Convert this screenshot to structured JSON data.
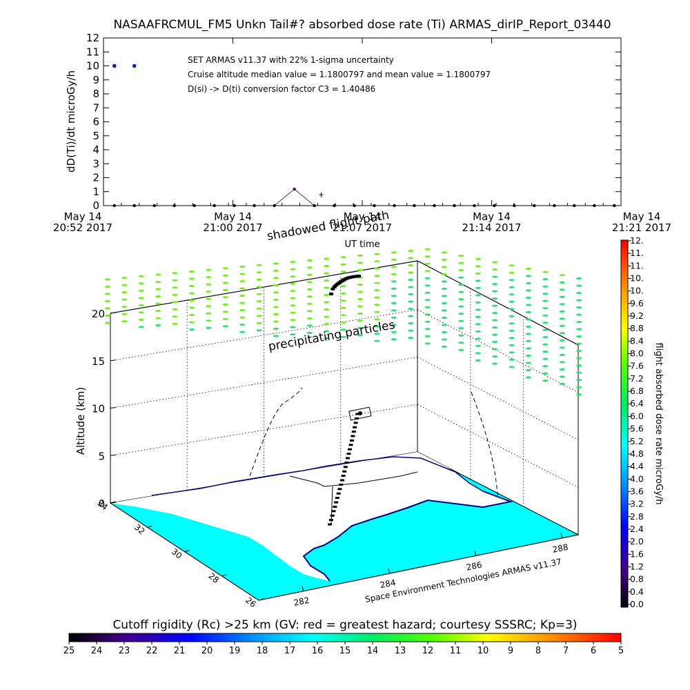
{
  "chart_data": [
    {
      "type": "scatter",
      "title": "NASAAFRCMUL_FM5 Unkn Tail#? absorbed dose rate (Ti) ARMAS_dirIP_Report_03440",
      "ylabel": "dD(Ti)/dt microGy/h",
      "xlabel": "UT time",
      "ylim": [
        0,
        12
      ],
      "y_ticks": [
        "0",
        "1",
        "2",
        "3",
        "4",
        "5",
        "6",
        "7",
        "8",
        "9",
        "10",
        "11",
        "12"
      ],
      "x_ticks": [
        {
          "line1": "May 14",
          "line2": "20:52 2017"
        },
        {
          "line1": "May 14",
          "line2": "21:00 2017"
        },
        {
          "line1": "May 14",
          "line2": "21:07 2017"
        },
        {
          "line1": "May 14",
          "line2": "21:14 2017"
        },
        {
          "line1": "May 14",
          "line2": "21:21 2017"
        }
      ],
      "annotations": [
        "SET ARMAS v11.37 with 22% 1-sigma uncertainty",
        "Cruise altitude median value = 1.1800797 and mean value = 1.1800797",
        "D(si) -> D(ti) conversion factor C3 = 1.40486"
      ],
      "legend_markers": [
        {
          "x": 0.62,
          "y": 10.0
        },
        {
          "x": 1.76,
          "y": 10.0
        }
      ],
      "series": [
        {
          "x": [
            0.62,
            1.76,
            2.9,
            4.04,
            5.18,
            6.32,
            7.46,
            8.6,
            9.74,
            10.88,
            12.02,
            13.16,
            14.3,
            15.44,
            16.58,
            17.72,
            18.86,
            20.0,
            21.14,
            22.28,
            23.42,
            24.56,
            25.7,
            26.84,
            27.98,
            29.12
          ],
          "y": [
            0,
            0,
            0,
            0,
            0,
            0,
            0,
            0,
            0,
            1.18,
            0,
            0,
            0,
            0,
            0,
            0,
            0,
            0,
            0,
            0,
            0,
            0,
            0,
            0,
            0,
            0
          ]
        }
      ],
      "xlim_minutes_after_first_tick": [
        0,
        29
      ]
    },
    {
      "type": "scatter",
      "ylabel": "Altitude (km)",
      "xlabel": "Space Environment Technologies ARMAS v11.37",
      "z_ticks": [
        "0",
        "5",
        "10",
        "15",
        "20"
      ],
      "lat_ticks": [
        "34",
        "32",
        "30",
        "28",
        "26"
      ],
      "lon_ticks": [
        "282",
        "284",
        "286",
        "288"
      ],
      "annotations": [
        "shadowed flight path",
        "precipitating particles"
      ],
      "colorbar_right": {
        "label": "flight absorbed dose rate microGy/h",
        "ticks": [
          "0.0",
          "0.4",
          "0.8",
          "1.2",
          "1.6",
          "2.0",
          "2.4",
          "2.8",
          "3.2",
          "3.6",
          "4.0",
          "4.4",
          "4.8",
          "5.2",
          "5.6",
          "6.0",
          "6.4",
          "6.8",
          "7.2",
          "7.6",
          "8.0",
          "8.4",
          "8.8",
          "9.2",
          "9.6",
          "10.",
          "10.",
          "11.",
          "11.",
          "12."
        ]
      },
      "colorbar_bottom": {
        "label": "Cutoff rigidity (Rc) >25 km (GV: red = greatest hazard; courtesy SSSRC; Kp=3)",
        "ticks": [
          "25",
          "24",
          "23",
          "22",
          "21",
          "20",
          "19",
          "18",
          "17",
          "16",
          "15",
          "14",
          "13",
          "12",
          "11",
          "10",
          "9",
          "8",
          "7",
          "6",
          "5"
        ]
      },
      "colors": {
        "sea": "#00ffff",
        "land": "#ffffff",
        "coast": "#000080",
        "track": "#000000",
        "particles": "#44dd44"
      }
    }
  ]
}
